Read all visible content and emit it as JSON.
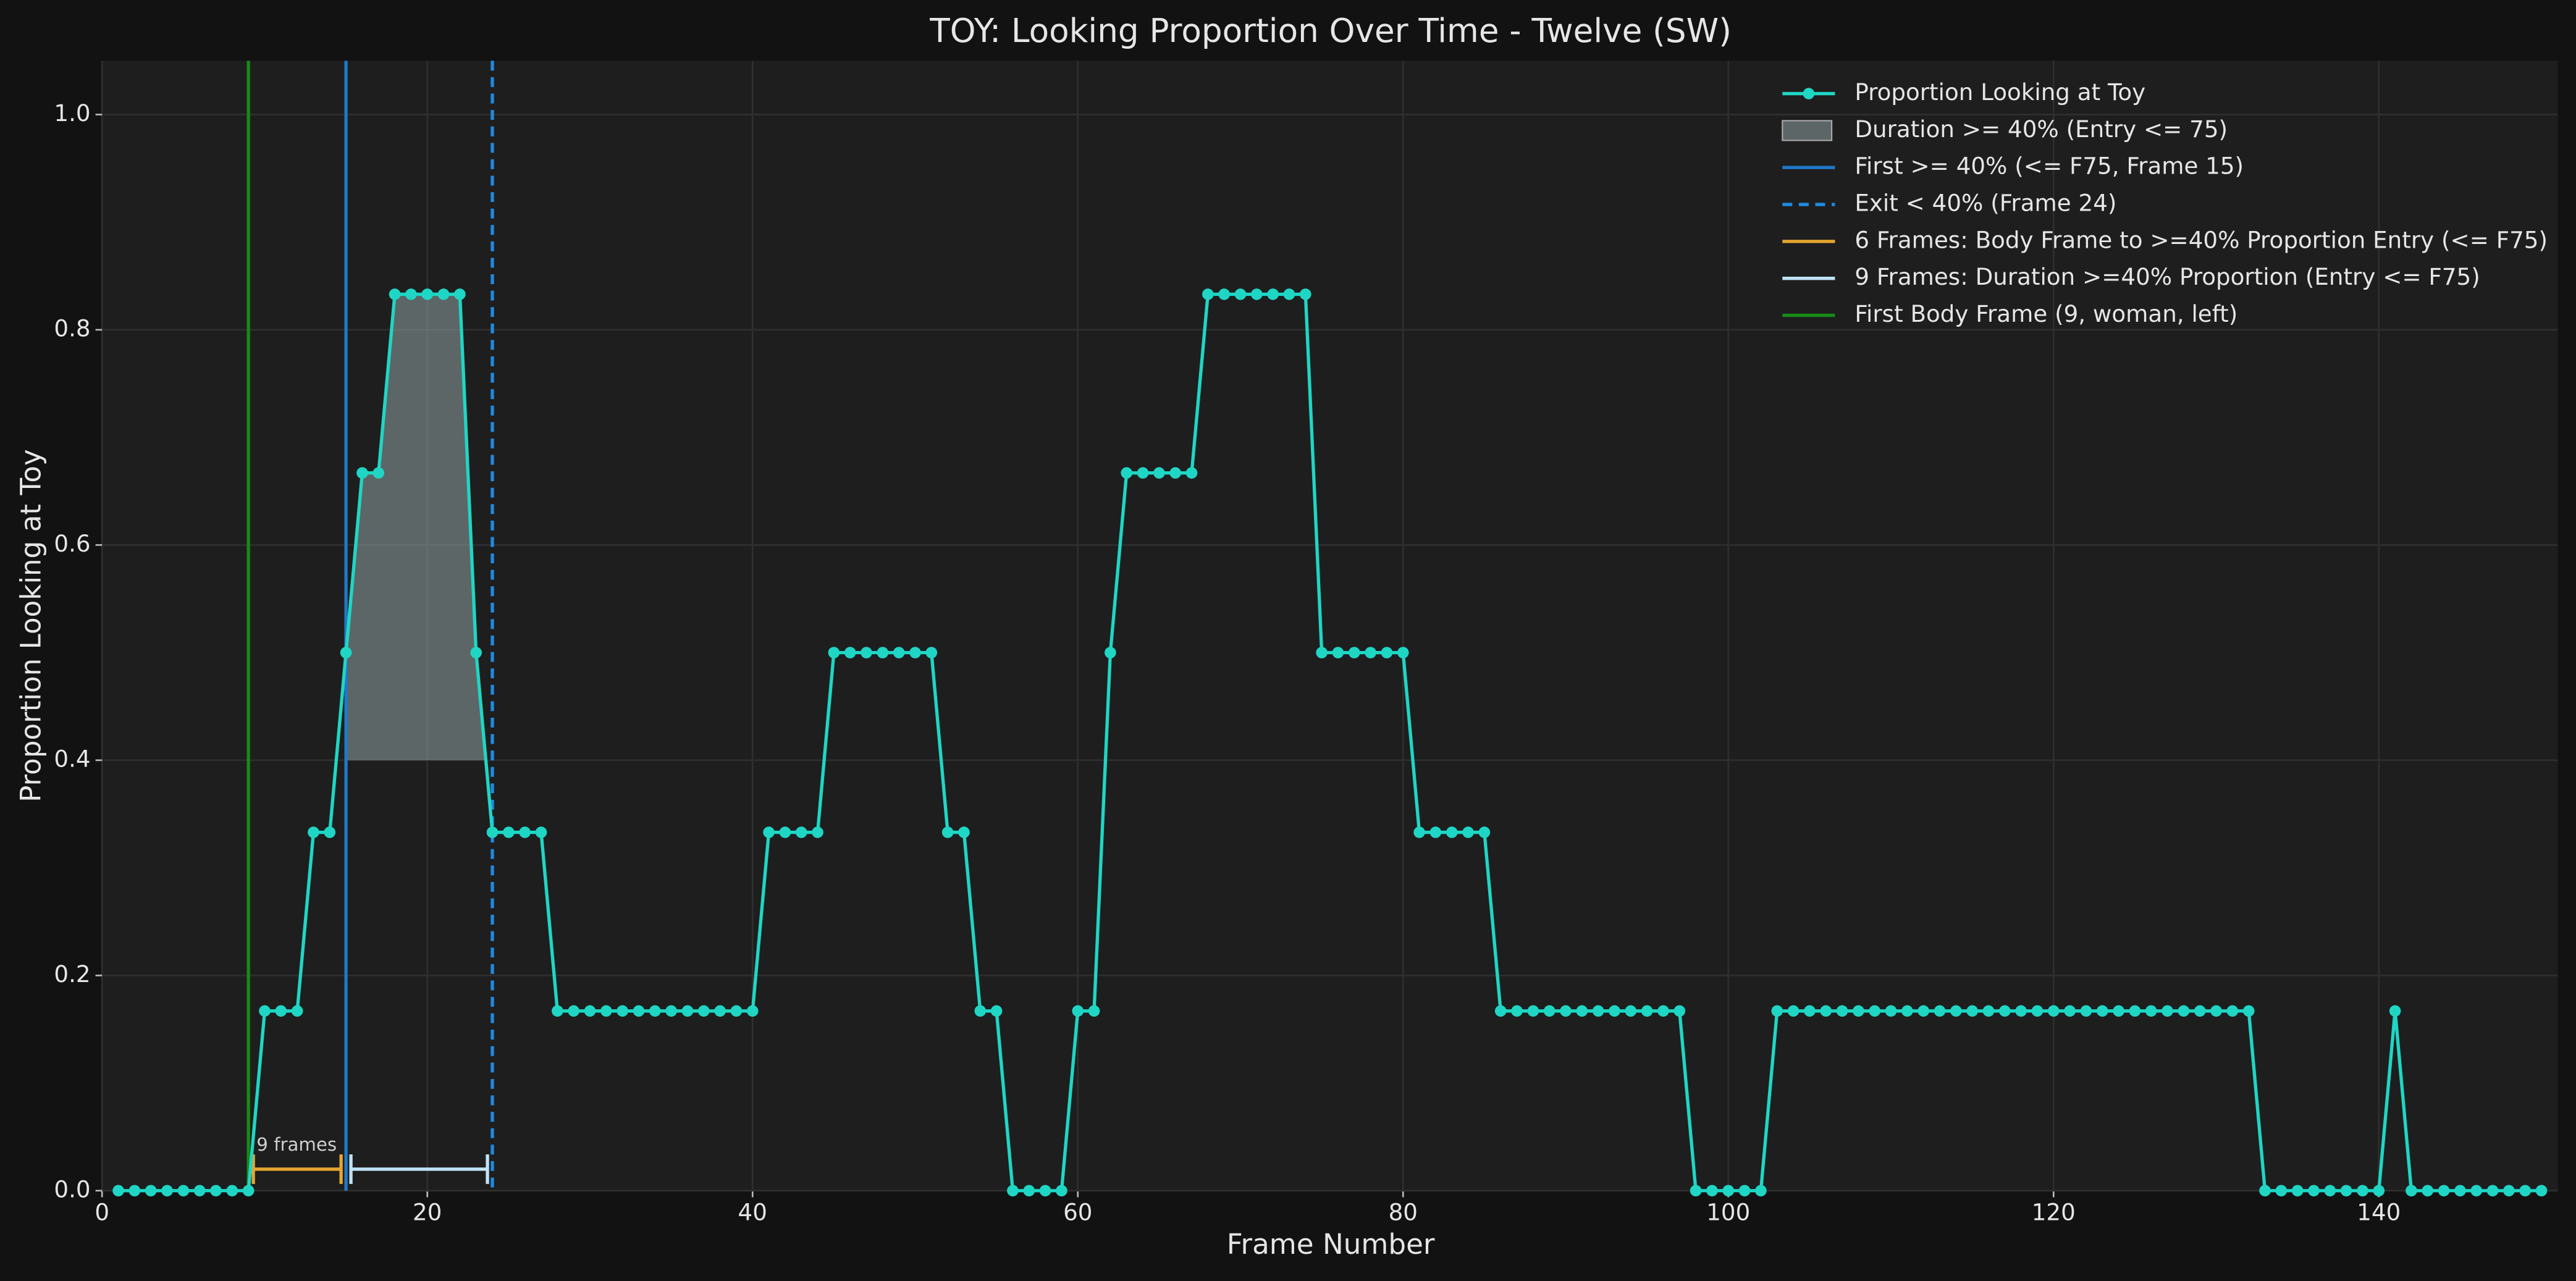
{
  "chart_data": {
    "type": "line",
    "title": "TOY: Looking Proportion Over Time - Twelve (SW)",
    "xlabel": "Frame Number",
    "ylabel": "Proportion Looking at Toy",
    "x": [
      1,
      2,
      3,
      4,
      5,
      6,
      7,
      8,
      9,
      10,
      11,
      12,
      13,
      14,
      15,
      16,
      17,
      18,
      19,
      20,
      21,
      22,
      23,
      24,
      25,
      26,
      27,
      28,
      29,
      30,
      31,
      32,
      33,
      34,
      35,
      36,
      37,
      38,
      39,
      40,
      41,
      42,
      43,
      44,
      45,
      46,
      47,
      48,
      49,
      50,
      51,
      52,
      53,
      54,
      55,
      56,
      57,
      58,
      59,
      60,
      61,
      62,
      63,
      64,
      65,
      66,
      67,
      68,
      69,
      70,
      71,
      72,
      73,
      74,
      75,
      76,
      77,
      78,
      79,
      80,
      81,
      82,
      83,
      84,
      85,
      86,
      87,
      88,
      89,
      90,
      91,
      92,
      93,
      94,
      95,
      96,
      97,
      98,
      99,
      100,
      101,
      102,
      103,
      104,
      105,
      106,
      107,
      108,
      109,
      110,
      111,
      112,
      113,
      114,
      115,
      116,
      117,
      118,
      119,
      120,
      121,
      122,
      123,
      124,
      125,
      126,
      127,
      128,
      129,
      130,
      131,
      132,
      133,
      134,
      135,
      136,
      137,
      138,
      139,
      140,
      141,
      142,
      143,
      144,
      145,
      146,
      147,
      148,
      149,
      150
    ],
    "series": [
      {
        "name": "Proportion Looking at Toy",
        "color": "#1fd6c4",
        "values": [
          0,
          0,
          0,
          0,
          0,
          0,
          0,
          0,
          0,
          0.167,
          0.167,
          0.167,
          0.333,
          0.333,
          0.5,
          0.667,
          0.667,
          0.833,
          0.833,
          0.833,
          0.833,
          0.833,
          0.5,
          0.333,
          0.333,
          0.333,
          0.333,
          0.167,
          0.167,
          0.167,
          0.167,
          0.167,
          0.167,
          0.167,
          0.167,
          0.167,
          0.167,
          0.167,
          0.167,
          0.167,
          0.333,
          0.333,
          0.333,
          0.333,
          0.5,
          0.5,
          0.5,
          0.5,
          0.5,
          0.5,
          0.5,
          0.333,
          0.333,
          0.167,
          0.167,
          0,
          0,
          0,
          0,
          0.167,
          0.167,
          0.5,
          0.667,
          0.667,
          0.667,
          0.667,
          0.667,
          0.833,
          0.833,
          0.833,
          0.833,
          0.833,
          0.833,
          0.833,
          0.5,
          0.5,
          0.5,
          0.5,
          0.5,
          0.5,
          0.333,
          0.333,
          0.333,
          0.333,
          0.333,
          0.167,
          0.167,
          0.167,
          0.167,
          0.167,
          0.167,
          0.167,
          0.167,
          0.167,
          0.167,
          0.167,
          0.167,
          0,
          0,
          0,
          0,
          0,
          0.167,
          0.167,
          0.167,
          0.167,
          0.167,
          0.167,
          0.167,
          0.167,
          0.167,
          0.167,
          0.167,
          0.167,
          0.167,
          0.167,
          0.167,
          0.167,
          0.167,
          0.167,
          0.167,
          0.167,
          0.167,
          0.167,
          0.167,
          0.167,
          0.167,
          0.167,
          0.167,
          0.167,
          0.167,
          0.167,
          0,
          0,
          0,
          0,
          0,
          0,
          0,
          0,
          0.167,
          0,
          0,
          0,
          0,
          0,
          0,
          0,
          0,
          0
        ]
      }
    ],
    "fill": {
      "name": "Duration >= 40% (Entry <= 75)",
      "color": "#8fa3a3",
      "threshold": 0.4,
      "from": 15,
      "to": 24
    },
    "vlines": [
      {
        "name": "First >= 40% (<= F75, Frame 15)",
        "color": "#1f78c8",
        "x": 15,
        "dashed": false
      },
      {
        "name": "Exit < 40% (Frame 24)",
        "color": "#1f8ae0",
        "x": 24,
        "dashed": true
      }
    ],
    "brackets": [
      {
        "name": "6 Frames: Body Frame to >=40% Proportion Entry (<= F75)",
        "color": "#e5a630",
        "x": [
          9,
          15
        ],
        "y": 0.02
      },
      {
        "name": "9 Frames: Duration >=40% Proportion (Entry <= F75)",
        "color": "#bfe3f7",
        "x": [
          15,
          24
        ],
        "y": 0.02
      }
    ],
    "vlines2": [
      {
        "name": "First Body Frame (9, woman, left)",
        "color": "#178a17",
        "x": 9,
        "dashed": false
      }
    ],
    "annotation": {
      "text": "9 frames",
      "x": 9.5,
      "y": 0.042
    },
    "xlim": [
      0,
      151
    ],
    "ylim": [
      0,
      1.05
    ],
    "xticks": [
      0,
      20,
      40,
      60,
      80,
      100,
      120,
      140
    ],
    "yticks": [
      {
        "value": 0,
        "label": "0.0"
      },
      0.2,
      0.4,
      0.6,
      0.8,
      {
        "value": 1,
        "label": "1.0"
      }
    ],
    "grid": true,
    "legend": "upper right"
  }
}
